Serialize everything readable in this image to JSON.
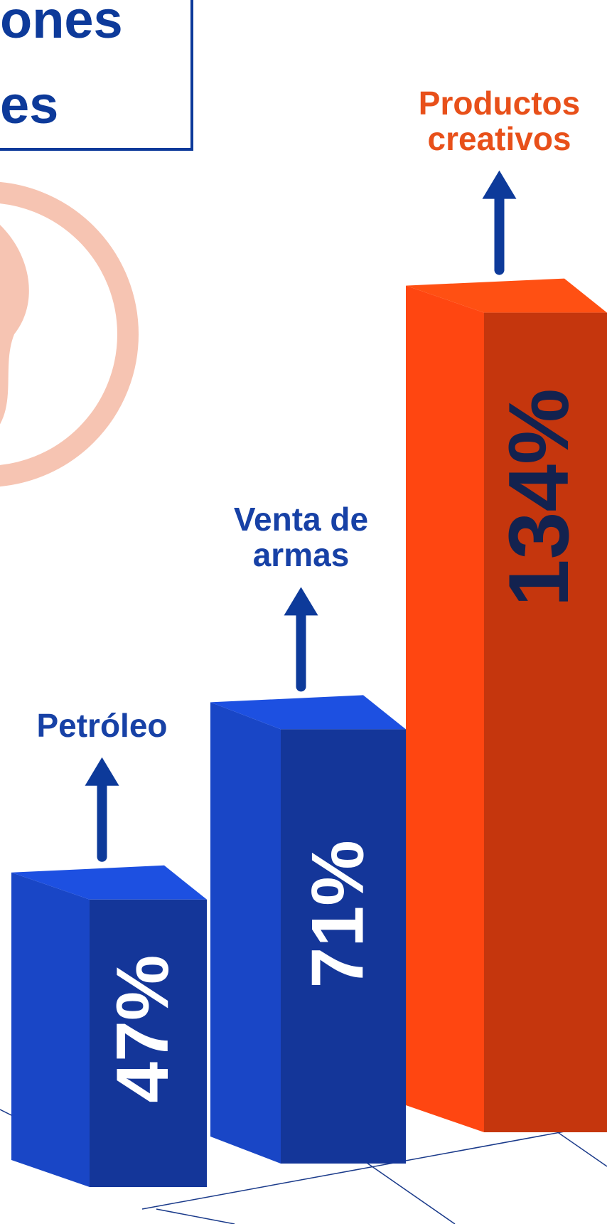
{
  "chart_data": {
    "type": "bar",
    "title": [
      "ones",
      "es"
    ],
    "categories": [
      "Petróleo",
      "Venta de armas",
      "Productos creativos"
    ],
    "values": [
      47,
      71,
      134
    ],
    "value_labels": [
      "47%",
      "71%",
      "134%"
    ],
    "colors": [
      "#1740b4",
      "#1740b4",
      "#e8400f"
    ],
    "label_colors": [
      "#1741a6",
      "#1741a6",
      "#e8501a"
    ]
  }
}
